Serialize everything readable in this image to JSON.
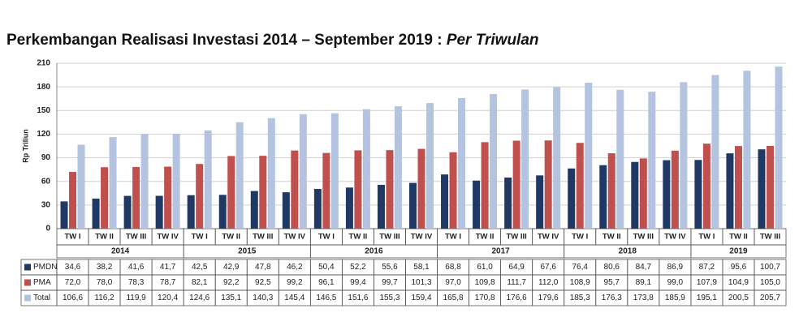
{
  "chart_data": {
    "type": "bar",
    "title": "Perkembangan Realisasi Investasi 2014 – September 2019 :",
    "subtitle": "Per Triwulan",
    "y_label": "Rp Triliun",
    "groups": [
      {
        "name": "2014",
        "categories": [
          "TW I",
          "TW II",
          "TW III",
          "TW IV"
        ]
      },
      {
        "name": "2015",
        "categories": [
          "TW I",
          "TW II",
          "TW III",
          "TW IV"
        ]
      },
      {
        "name": "2016",
        "categories": [
          "TW I",
          "TW II",
          "TW III",
          "TW IV"
        ]
      },
      {
        "name": "2017",
        "categories": [
          "TW I",
          "TW II",
          "TW III",
          "TW IV"
        ]
      },
      {
        "name": "2018",
        "categories": [
          "TW I",
          "TW II",
          "TW III",
          "TW IV"
        ]
      },
      {
        "name": "2019",
        "categories": [
          "TW I",
          "TW II",
          "TW III"
        ]
      }
    ],
    "series": [
      {
        "name": "PMDN",
        "color": "#1f3864",
        "values": [
          34.6,
          38.2,
          41.6,
          41.7,
          42.5,
          42.9,
          47.8,
          46.2,
          50.4,
          52.2,
          55.6,
          58.1,
          68.8,
          61.0,
          64.9,
          67.6,
          76.4,
          80.6,
          84.7,
          86.9,
          87.2,
          95.6,
          100.7
        ],
        "value_labels": [
          "34,6",
          "38,2",
          "41,6",
          "41,7",
          "42,5",
          "42,9",
          "47,8",
          "46,2",
          "50,4",
          "52,2",
          "55,6",
          "58,1",
          "68,8",
          "61,0",
          "64,9",
          "67,6",
          "76,4",
          "80,6",
          "84,7",
          "86,9",
          "87,2",
          "95,6",
          "100,7"
        ]
      },
      {
        "name": "PMA",
        "color": "#c0504d",
        "values": [
          72.0,
          78.0,
          78.3,
          78.7,
          82.1,
          92.2,
          92.5,
          99.2,
          96.1,
          99.4,
          99.7,
          101.3,
          97.0,
          109.8,
          111.7,
          112.0,
          108.9,
          95.7,
          89.1,
          99.0,
          107.9,
          104.9,
          105.0
        ],
        "value_labels": [
          "72,0",
          "78,0",
          "78,3",
          "78,7",
          "82,1",
          "92,2",
          "92,5",
          "99,2",
          "96,1",
          "99,4",
          "99,7",
          "101,3",
          "97,0",
          "109,8",
          "111,7",
          "112,0",
          "108,9",
          "95,7",
          "89,1",
          "99,0",
          "107,9",
          "104,9",
          "105,0"
        ]
      },
      {
        "name": "Total",
        "color": "#b4c3e0",
        "values": [
          106.6,
          116.2,
          119.9,
          120.4,
          124.6,
          135.1,
          140.3,
          145.4,
          146.5,
          151.6,
          155.3,
          159.4,
          165.8,
          170.8,
          176.6,
          179.6,
          185.3,
          176.3,
          173.8,
          185.9,
          195.1,
          200.5,
          205.7
        ],
        "value_labels": [
          "106,6",
          "116,2",
          "119,9",
          "120,4",
          "124,6",
          "135,1",
          "140,3",
          "145,4",
          "146,5",
          "151,6",
          "155,3",
          "159,4",
          "165,8",
          "170,8",
          "176,6",
          "179,6",
          "185,3",
          "176,3",
          "173,8",
          "185,9",
          "195,1",
          "200,5",
          "205,7"
        ]
      }
    ],
    "ylim": [
      0,
      210
    ],
    "yticks": [
      0,
      30,
      60,
      90,
      120,
      150,
      180,
      210
    ],
    "grid": true
  }
}
